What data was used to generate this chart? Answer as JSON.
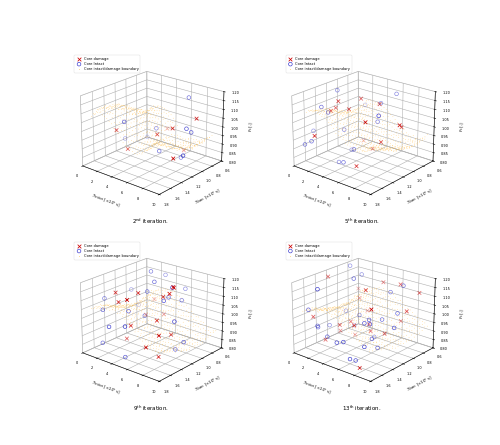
{
  "figsize": [
    10,
    8.9
  ],
  "dpi": 50,
  "legend_labels": [
    "Core damage",
    "Core Intact",
    "Core intact/damage boundary"
  ],
  "dot_color": "#FFB733",
  "iteration_labels": [
    "2",
    "5",
    "9",
    "13"
  ],
  "iteration_supers": [
    "nd",
    "th",
    "th",
    "th"
  ],
  "elev": 22,
  "azim": -50,
  "xlim": [
    0,
    10
  ],
  "ylim": [
    0.6,
    1.8
  ],
  "zlim": [
    0.8,
    1.2
  ],
  "xticks": [
    0,
    2,
    4,
    6,
    8,
    10
  ],
  "yticks": [
    0.6,
    0.8,
    1.0,
    1.2,
    1.4,
    1.6,
    1.8
  ],
  "zticks": [
    0.8,
    0.85,
    0.9,
    0.95,
    1.0,
    1.05,
    1.1,
    1.15,
    1.2
  ],
  "n_surface": 600
}
